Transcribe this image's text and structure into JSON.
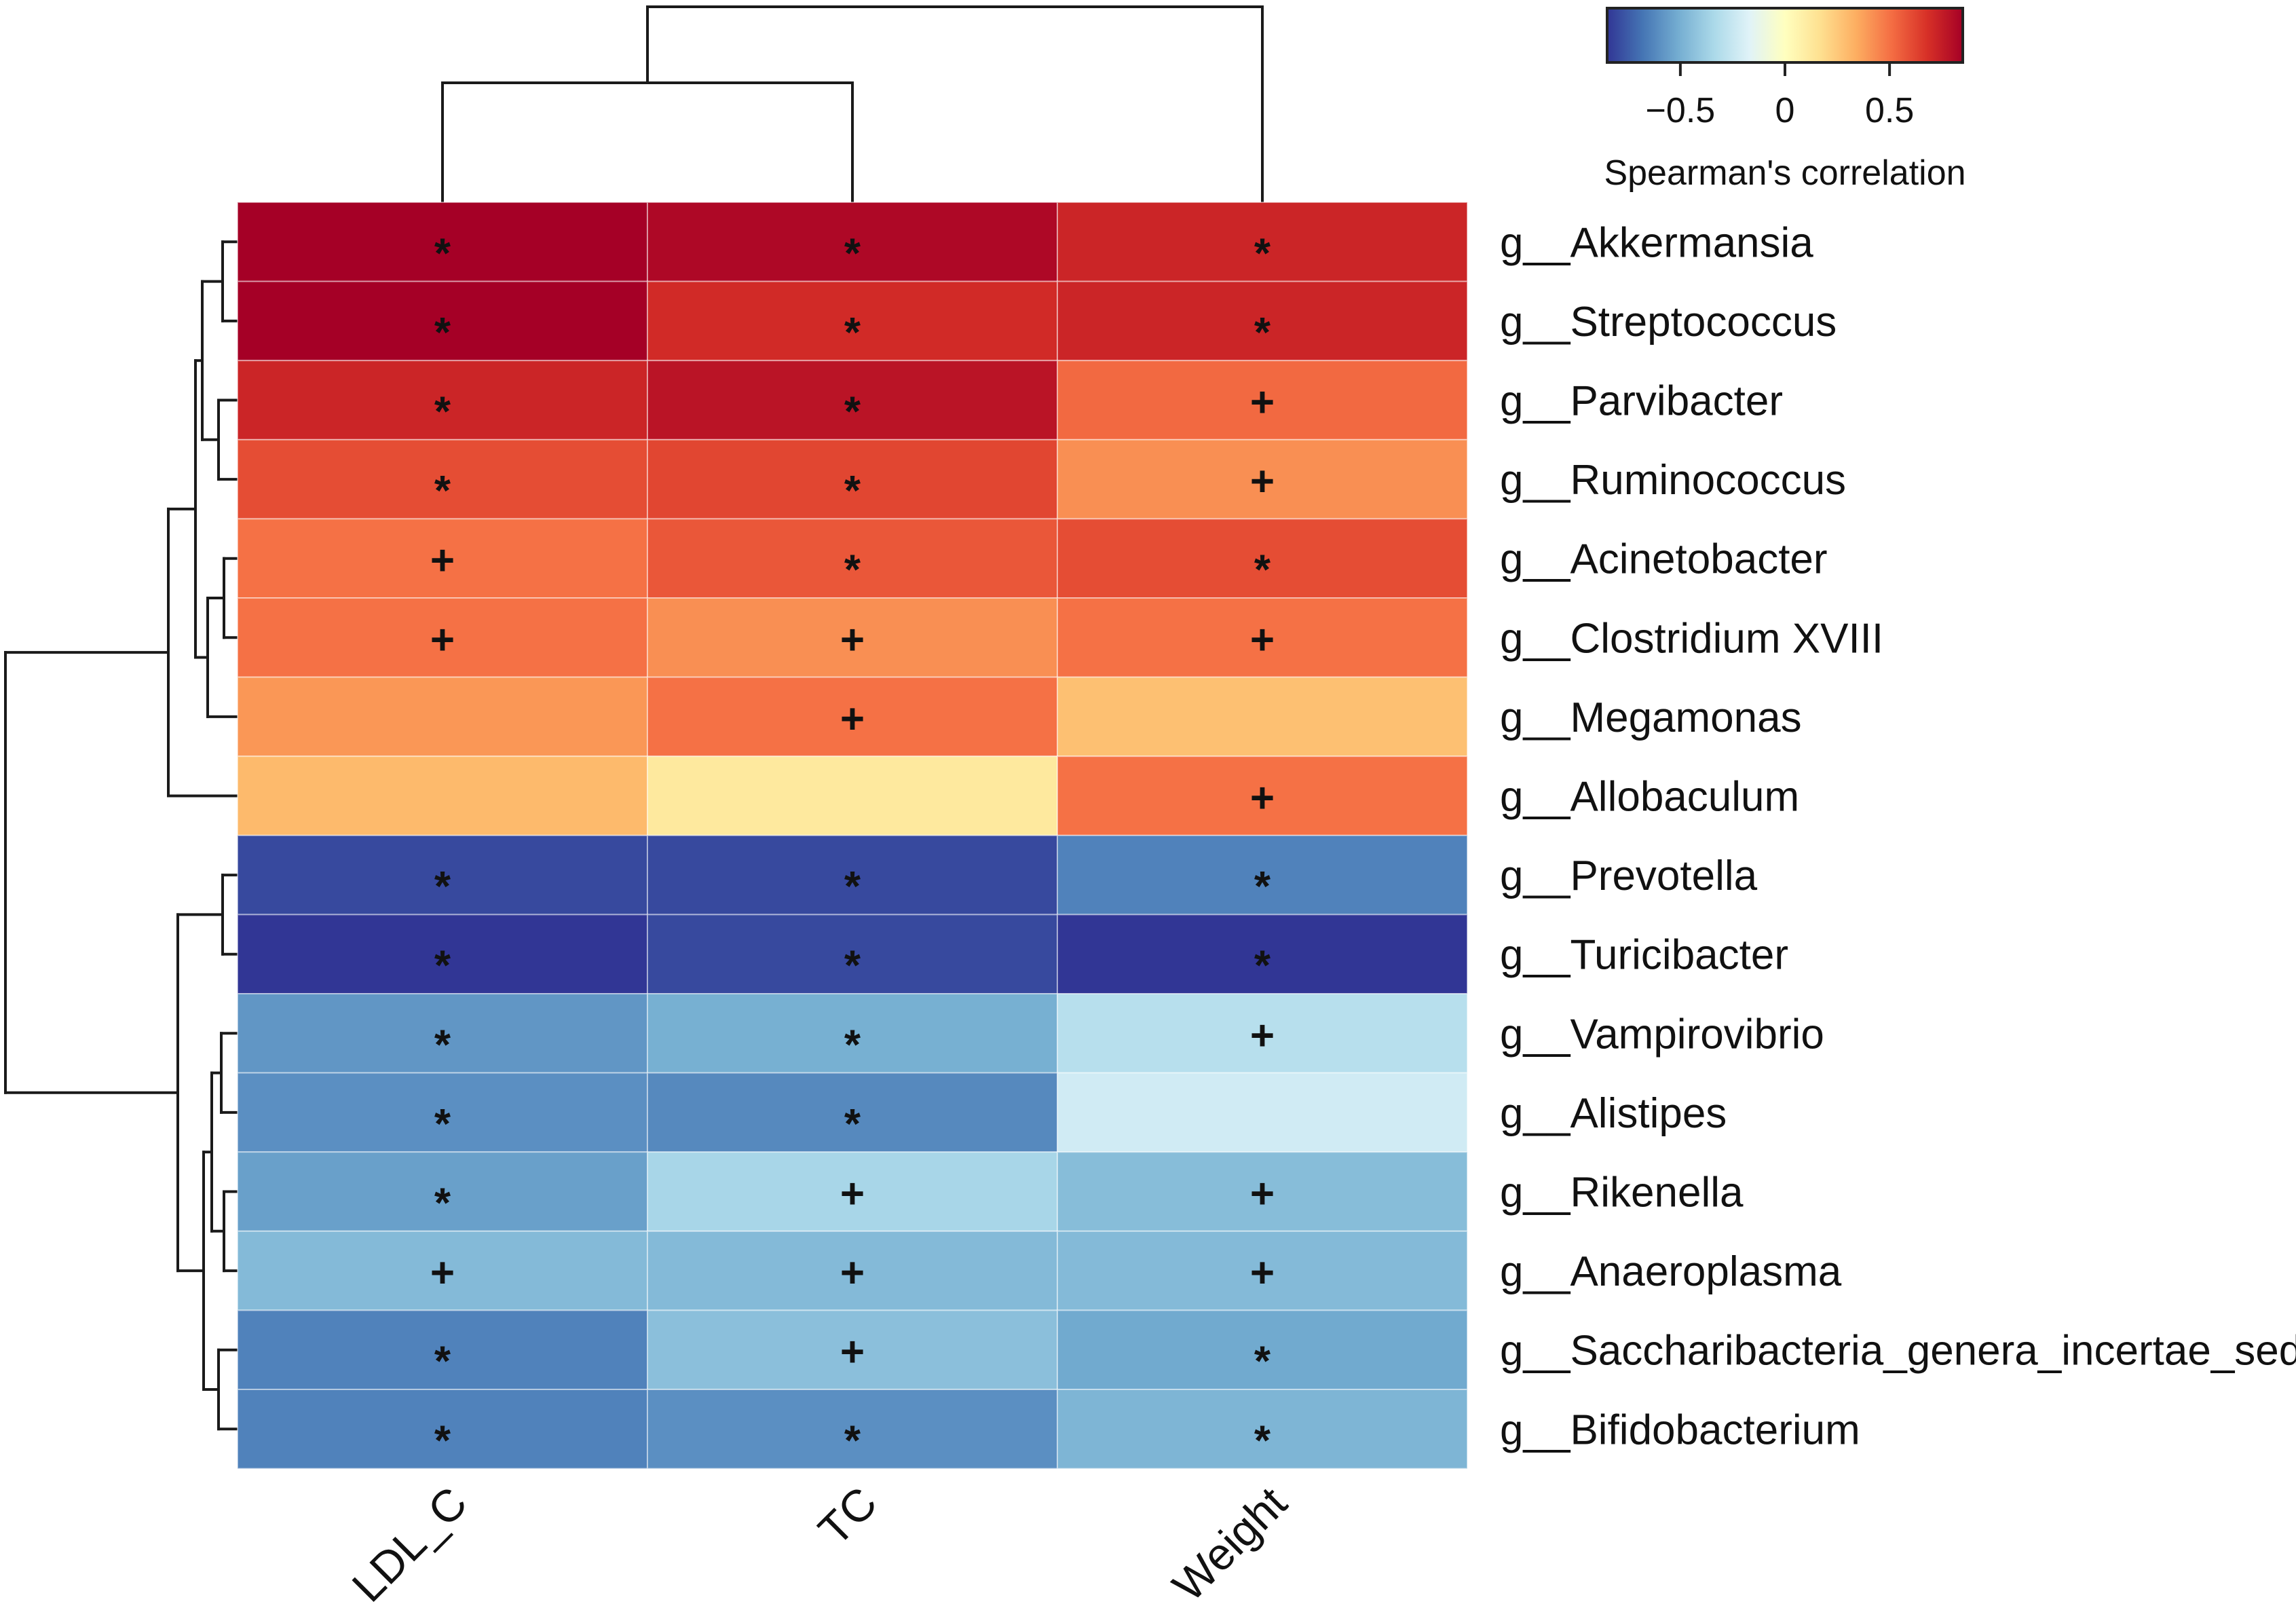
{
  "chart_data": {
    "type": "heatmap",
    "columns": [
      "LDL_C",
      "TC",
      "Weight"
    ],
    "rows": [
      "g__Akkermansia",
      "g__Streptococcus",
      "g__Parvibacter",
      "g__Ruminococcus",
      "g__Acinetobacter",
      "g__Clostridium XVIII",
      "g__Megamonas",
      "g__Allobaculum",
      "g__Prevotella",
      "g__Turicibacter",
      "g__Vampirovibrio",
      "g__Alistipes",
      "g__Rikenella",
      "g__Anaeroplasma",
      "g__Saccharibacteria_genera_incertae_sedis",
      "g__Bifidobacterium"
    ],
    "values": [
      [
        0.85,
        0.82,
        0.72
      ],
      [
        0.86,
        0.7,
        0.72
      ],
      [
        0.72,
        0.78,
        0.52
      ],
      [
        0.6,
        0.62,
        0.42
      ],
      [
        0.5,
        0.57,
        0.6
      ],
      [
        0.5,
        0.42,
        0.5
      ],
      [
        0.4,
        0.5,
        0.28
      ],
      [
        0.3,
        0.12,
        0.5
      ],
      [
        -0.8,
        -0.8,
        -0.64
      ],
      [
        -0.85,
        -0.8,
        -0.86
      ],
      [
        -0.58,
        -0.5,
        -0.3
      ],
      [
        -0.6,
        -0.62,
        -0.22
      ],
      [
        -0.55,
        -0.35,
        -0.45
      ],
      [
        -0.46,
        -0.46,
        -0.46
      ],
      [
        -0.64,
        -0.44,
        -0.52
      ],
      [
        -0.64,
        -0.6,
        -0.48
      ]
    ],
    "significance": [
      [
        "*",
        "*",
        "*"
      ],
      [
        "*",
        "*",
        "*"
      ],
      [
        "*",
        "*",
        "+"
      ],
      [
        "*",
        "*",
        "+"
      ],
      [
        "+",
        "*",
        "*"
      ],
      [
        "+",
        "+",
        "+"
      ],
      [
        "",
        "+",
        ""
      ],
      [
        "",
        "",
        "+"
      ],
      [
        "*",
        "*",
        "*"
      ],
      [
        "*",
        "*",
        "*"
      ],
      [
        "*",
        "*",
        "+"
      ],
      [
        "*",
        "*",
        ""
      ],
      [
        "*",
        "+",
        "+"
      ],
      [
        "+",
        "+",
        "+"
      ],
      [
        "*",
        "+",
        "*"
      ],
      [
        "*",
        "*",
        "*"
      ]
    ],
    "colorbar": {
      "title": "Spearman's correlation",
      "range": [
        -0.85,
        0.85
      ],
      "ticks": [
        -0.5,
        0,
        0.5
      ],
      "tick_labels": [
        "−0.5",
        "0",
        "0.5"
      ],
      "colors": [
        "#313695",
        "#4575b4",
        "#74add1",
        "#abd9e9",
        "#e0f3f8",
        "#ffffbf",
        "#fee090",
        "#fdae61",
        "#f46d43",
        "#d73027",
        "#a50026"
      ]
    },
    "column_dendrogram": "((LDL_C, TC), Weight)",
    "row_dendrogram": "((((Akkermansia, Streptococcus), (Parvibacter, Ruminococcus)), ((Acinetobacter, Clostridium XVIII), Megamonas), Allobaculum), ((Prevotella, Turicibacter), (((Vampirovibrio, Alistipes), (Rikenella, Anaeroplasma)), (Saccharibacteria_genera_incertae_sedis, Bifidobacterium))))"
  }
}
